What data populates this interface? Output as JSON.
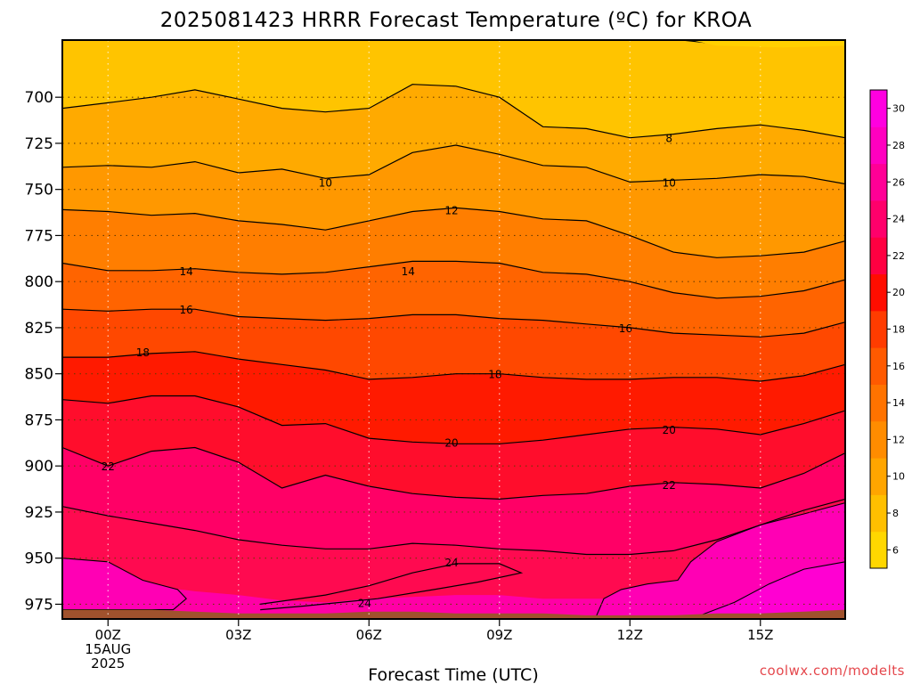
{
  "chart_data": {
    "type": "contour",
    "title": "2025081423 HRRR Forecast Temperature (ºC) for KROA",
    "xlabel": "Forecast Time (UTC)",
    "credit": "coolwx.com/modelts",
    "x_hours": [
      -1.5,
      0,
      1,
      2,
      3,
      4,
      5,
      6,
      7,
      8,
      9,
      10,
      11,
      12,
      13,
      14,
      15,
      16,
      17
    ],
    "x_ticks": [
      {
        "hour": 0,
        "label": "00Z",
        "date": "15AUG",
        "year": "2025"
      },
      {
        "hour": 3,
        "label": "03Z"
      },
      {
        "hour": 6,
        "label": "06Z"
      },
      {
        "hour": 9,
        "label": "09Z"
      },
      {
        "hour": 12,
        "label": "12Z"
      },
      {
        "hour": 15,
        "label": "15Z"
      }
    ],
    "y_ticks": [
      700,
      725,
      750,
      775,
      800,
      825,
      850,
      875,
      900,
      925,
      950,
      975
    ],
    "ylim_hpa": [
      669,
      983
    ],
    "xlim_hours": [
      -1.05,
      16.95
    ],
    "isotherms": [
      {
        "temp": 8,
        "p": [
          706,
          703,
          700,
          696,
          701,
          706,
          708,
          706,
          693,
          694,
          700,
          716,
          717,
          722,
          720,
          717,
          715,
          718,
          722
        ]
      },
      {
        "temp": 10,
        "p": [
          738,
          737,
          738,
          735,
          741,
          739,
          744,
          742,
          730,
          726,
          731,
          737,
          738,
          746,
          745,
          744,
          742,
          743,
          747
        ]
      },
      {
        "temp": 12,
        "p": [
          761,
          762,
          764,
          763,
          767,
          769,
          772,
          767,
          762,
          760,
          762,
          766,
          767,
          775,
          784,
          787,
          786,
          784,
          778
        ]
      },
      {
        "temp": 14,
        "p": [
          790,
          794,
          794,
          793,
          795,
          796,
          795,
          792,
          789,
          789,
          790,
          795,
          796,
          800,
          806,
          809,
          808,
          805,
          799
        ]
      },
      {
        "temp": 16,
        "p": [
          815,
          816,
          815,
          815,
          819,
          820,
          821,
          820,
          818,
          818,
          820,
          821,
          823,
          825,
          828,
          829,
          830,
          828,
          822
        ]
      },
      {
        "temp": 18,
        "p": [
          841,
          841,
          839,
          838,
          842,
          845,
          848,
          853,
          852,
          850,
          850,
          852,
          853,
          853,
          852,
          852,
          854,
          851,
          845
        ]
      },
      {
        "temp": 20,
        "p": [
          864,
          866,
          862,
          862,
          868,
          878,
          877,
          885,
          887,
          888,
          888,
          886,
          883,
          880,
          879,
          880,
          883,
          877,
          870
        ]
      },
      {
        "temp": 22,
        "p": [
          890,
          900,
          892,
          890,
          898,
          912,
          905,
          911,
          915,
          917,
          918,
          916,
          915,
          911,
          909,
          910,
          912,
          904,
          893
        ]
      }
    ],
    "isotherm_labels": [
      {
        "temp": 8,
        "x": 12.9,
        "p": 722
      },
      {
        "temp": 10,
        "x": 5.0,
        "p": 746
      },
      {
        "temp": 10,
        "x": 12.9,
        "p": 746
      },
      {
        "temp": 12,
        "x": 7.9,
        "p": 761
      },
      {
        "temp": 14,
        "x": 1.8,
        "p": 794
      },
      {
        "temp": 14,
        "x": 6.9,
        "p": 794
      },
      {
        "temp": 16,
        "x": 1.8,
        "p": 815
      },
      {
        "temp": 16,
        "x": 11.9,
        "p": 825
      },
      {
        "temp": 18,
        "x": 0.8,
        "p": 838
      },
      {
        "temp": 18,
        "x": 8.9,
        "p": 850
      },
      {
        "temp": 20,
        "x": 7.9,
        "p": 887
      },
      {
        "temp": 20,
        "x": 12.9,
        "p": 880
      },
      {
        "temp": 22,
        "x": 0.0,
        "p": 900
      },
      {
        "temp": 22,
        "x": 12.9,
        "p": 910
      },
      {
        "temp": 24,
        "x": 7.9,
        "p": 952
      },
      {
        "temp": 24,
        "x": 5.9,
        "p": 974
      }
    ],
    "colorbar": {
      "ticks": [
        6,
        8,
        10,
        12,
        14,
        16,
        18,
        20,
        22,
        24,
        26,
        28,
        30
      ],
      "colors": [
        "#ffd700",
        "#ffbf00",
        "#ffa500",
        "#ff8c00",
        "#ff7300",
        "#ff5a00",
        "#ff3c00",
        "#ff0d00",
        "#ff0041",
        "#ff006b",
        "#ff0096",
        "#ff00bf",
        "#ff00e0"
      ]
    },
    "band_colors": {
      "lt8": "#ffc400",
      "8-10": "#ffaa00",
      "10-12": "#ff9800",
      "12-14": "#ff7e00",
      "14-16": "#ff6400",
      "16-18": "#ff4800",
      "18-20": "#ff1a00",
      "20-22": "#ff0d2c",
      "22-24": "#ff0066",
      "ge24": "#ff00a6"
    },
    "ground_color": "#a0522d",
    "grid": true
  }
}
